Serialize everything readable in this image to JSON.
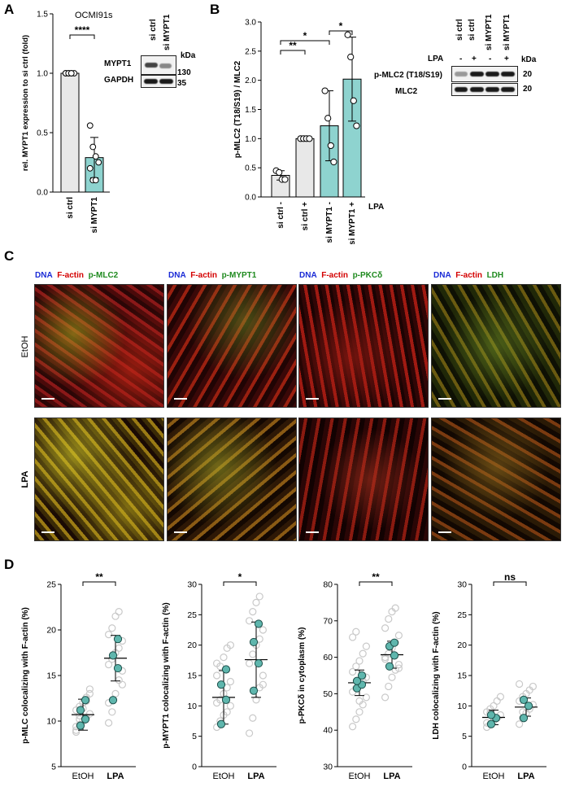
{
  "panels": {
    "A": "A",
    "B": "B",
    "C": "C",
    "D": "D"
  },
  "panel_a": {
    "title": "OCMI91s",
    "blot_labels": [
      "MYPT1",
      "GAPDH"
    ],
    "blot_lanes": [
      "si ctrl",
      "si MYPT1"
    ],
    "kda_label": "kDa",
    "markers": [
      "130",
      "35"
    ]
  },
  "panel_b": {
    "lpa_label": "LPA",
    "blot_lanes": [
      "si ctrl",
      "si ctrl",
      "si MYPT1",
      "si MYPT1"
    ],
    "lpa_signs": [
      "-",
      "+",
      "-",
      "+"
    ],
    "blot_labels": [
      "p-MLC2 (T18/S19)",
      "MLC2"
    ],
    "kda_label": "kDa",
    "markers": [
      "20",
      "20"
    ]
  },
  "panel_c": {
    "columns": [
      {
        "ch1": "DNA",
        "ch2": "F-actin",
        "ch3": "p-MLC2"
      },
      {
        "ch1": "DNA",
        "ch2": "F-actin",
        "ch3": "p-MYPT1"
      },
      {
        "ch1": "DNA",
        "ch2": "F-actin",
        "ch3": "p-PKCδ"
      },
      {
        "ch1": "DNA",
        "ch2": "F-actin",
        "ch3": "LDH"
      }
    ],
    "rows": [
      "EtOH",
      "LPA"
    ],
    "colors": {
      "dna": "#1a2bd6",
      "factin": "#d40000",
      "green": "#1e8a1e"
    }
  },
  "chart_data": [
    {
      "type": "bar",
      "panel": "A",
      "categories": [
        "si ctrl",
        "si MYPT1"
      ],
      "values": [
        1.0,
        0.29
      ],
      "errors": [
        0.0,
        0.17
      ],
      "points": [
        [
          1.0,
          1.0,
          1.0,
          1.0,
          1.0,
          1.0,
          1.0
        ],
        [
          0.56,
          0.38,
          0.3,
          0.25,
          0.2,
          0.1,
          0.1
        ]
      ],
      "ylabel": "rel. MYPT1 expression to si ctrl (fold)",
      "ylim": [
        0,
        1.5
      ],
      "yticks": [
        "0.0",
        "0.5",
        "1.0",
        "1.5"
      ],
      "significance": "****",
      "bar_colors": [
        "#e8e8e8",
        "#8ed3cf"
      ]
    },
    {
      "type": "bar",
      "panel": "B",
      "categories": [
        "si ctrl -",
        "si ctrl +",
        "si MYPT1 -",
        "si MYPT1 +"
      ],
      "values": [
        0.37,
        1.0,
        1.22,
        2.02
      ],
      "errors": [
        0.08,
        0.0,
        0.6,
        0.72
      ],
      "points": [
        [
          0.45,
          0.42,
          0.3,
          0.3
        ],
        [
          1.0,
          1.0,
          1.0,
          1.0
        ],
        [
          1.82,
          1.35,
          0.88,
          0.6
        ],
        [
          2.78,
          2.4,
          1.65,
          1.22
        ]
      ],
      "ylabel": "p-MLC2 (T18/S19) / MLC2",
      "ylim": [
        0,
        3.0
      ],
      "yticks": [
        "0.0",
        "0.5",
        "1.0",
        "1.5",
        "2.0",
        "2.5",
        "3.0"
      ],
      "significance": [
        {
          "from": 0,
          "to": 1,
          "label": "**"
        },
        {
          "from": 0,
          "to": 2,
          "label": "*"
        },
        {
          "from": 2,
          "to": 3,
          "label": "*"
        }
      ],
      "bar_colors": [
        "#e8e8e8",
        "#e8e8e8",
        "#8ed3cf",
        "#8ed3cf"
      ]
    },
    {
      "type": "scatter",
      "panel": "D1",
      "categories": [
        "EtOH",
        "LPA"
      ],
      "ylabel": "p-MLC colocalizing with F-actin (%)",
      "ylim": [
        5,
        25
      ],
      "yticks": [
        "5",
        "10",
        "15",
        "20",
        "25"
      ],
      "significance": "**",
      "means": [
        10.7,
        16.9
      ],
      "sd": [
        1.7,
        2.5
      ],
      "points": [
        [
          9.0,
          9.6,
          10.0,
          10.4,
          10.8,
          11.2,
          11.6,
          12.0,
          12.6,
          13.0,
          9.4,
          10.6,
          11.4,
          12.2,
          13.5,
          8.8,
          10.2
        ],
        [
          9.8,
          11.0,
          13.0,
          14.5,
          15.5,
          16.2,
          16.8,
          17.5,
          18.0,
          18.8,
          19.5,
          20.2,
          21.5,
          22.0,
          14.0,
          12.0
        ]
      ],
      "highlighted": [
        [
          9.5,
          10.2,
          11.2,
          12.3
        ],
        [
          12.3,
          15.8,
          17.2,
          19.0
        ]
      ]
    },
    {
      "type": "scatter",
      "panel": "D2",
      "categories": [
        "EtOH",
        "LPA"
      ],
      "ylabel": "p-MYPT1 colocalizing with F-actin (%)",
      "ylim": [
        0,
        30
      ],
      "yticks": [
        "0",
        "5",
        "10",
        "15",
        "20",
        "25",
        "30"
      ],
      "significance": "*",
      "means": [
        11.4,
        17.6
      ],
      "sd": [
        4.4,
        6.2
      ],
      "points": [
        [
          6.5,
          7.5,
          8.5,
          9.0,
          10.0,
          10.5,
          11.0,
          12.0,
          13.0,
          14.0,
          15.0,
          16.5,
          18.0,
          19.5,
          20.0,
          17.0
        ],
        [
          5.5,
          8.0,
          11.0,
          13.0,
          15.0,
          17.0,
          18.5,
          20.0,
          21.0,
          22.5,
          24.0,
          25.5,
          27.0,
          28.0,
          13.5
        ]
      ],
      "highlighted": [
        [
          7.0,
          11.0,
          13.5,
          16.0
        ],
        [
          12.5,
          17.0,
          20.5,
          23.5
        ]
      ]
    },
    {
      "type": "scatter",
      "panel": "D3",
      "categories": [
        "EtOH",
        "LPA"
      ],
      "ylabel": "p-PKCδ in cytoplasm (%)",
      "ylim": [
        30,
        80
      ],
      "yticks": [
        "30",
        "40",
        "50",
        "60",
        "70",
        "80"
      ],
      "significance": "**",
      "means": [
        53.0,
        60.7
      ],
      "sd": [
        3.5,
        3.7
      ],
      "points": [
        [
          41.0,
          43.0,
          45.0,
          47.0,
          49.0,
          50.5,
          51.5,
          52.5,
          53.5,
          54.5,
          56.0,
          57.5,
          59.0,
          61.0,
          63.0,
          65.5,
          67.0,
          48.0,
          55.0
        ],
        [
          49.0,
          52.0,
          54.5,
          56.5,
          58.0,
          59.5,
          61.0,
          62.5,
          64.0,
          66.0,
          68.0,
          70.5,
          72.5,
          73.5,
          57.0,
          60.0
        ]
      ],
      "highlighted": [
        [
          51.5,
          52.5,
          53.5,
          55.0
        ],
        [
          57.5,
          60.5,
          63.0,
          64.0
        ]
      ]
    },
    {
      "type": "scatter",
      "panel": "D4",
      "categories": [
        "EtOH",
        "LPA"
      ],
      "ylabel": "LDH colocalizing with F-actin (%)",
      "ylim": [
        0,
        30
      ],
      "yticks": [
        "0",
        "5",
        "10",
        "15",
        "20",
        "25",
        "30"
      ],
      "significance": "ns",
      "means": [
        8.1,
        9.8
      ],
      "sd": [
        1.2,
        1.5
      ],
      "points": [
        [
          6.5,
          7.0,
          7.5,
          8.0,
          8.5,
          9.0,
          9.5,
          10.0,
          10.8,
          11.5,
          7.2,
          8.8
        ],
        [
          7.0,
          8.0,
          8.8,
          9.5,
          10.2,
          10.8,
          11.5,
          12.0,
          12.6,
          13.2,
          13.6,
          9.0
        ]
      ],
      "highlighted": [
        [
          7.0,
          8.0,
          8.5
        ],
        [
          8.0,
          10.0,
          11.0
        ]
      ]
    }
  ]
}
